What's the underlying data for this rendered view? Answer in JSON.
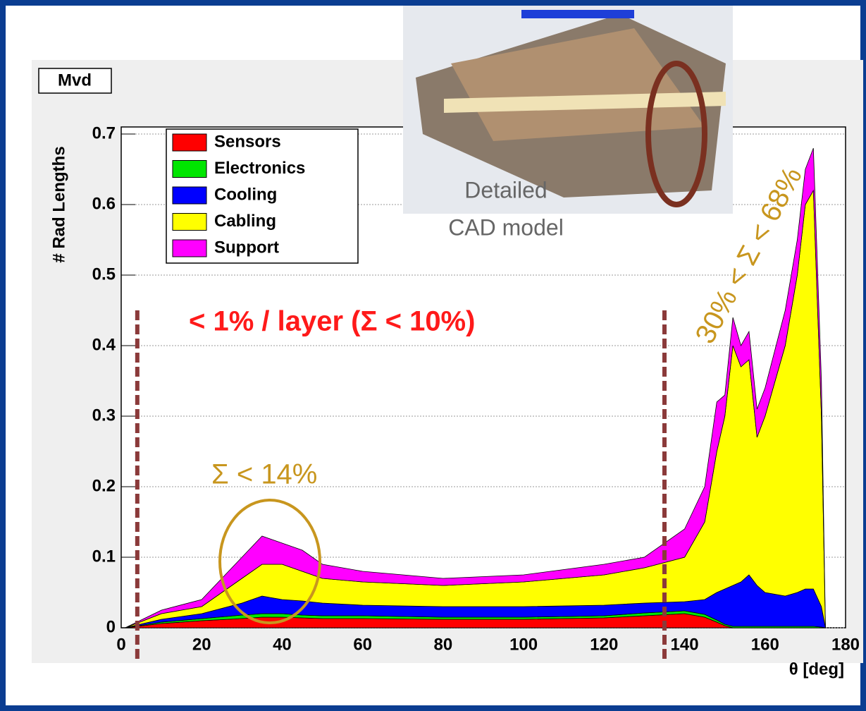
{
  "chart_data": {
    "type": "stacked-area",
    "label": "Mvd",
    "ylabel": "# Rad Lengths",
    "xlabel": "θ [deg]",
    "x": [
      1,
      10,
      20,
      30,
      35,
      40,
      45,
      50,
      60,
      80,
      100,
      120,
      130,
      140,
      145,
      148,
      150,
      152,
      154,
      156,
      158,
      160,
      165,
      168,
      170,
      172,
      174,
      175
    ],
    "series": [
      {
        "name": "Sensors",
        "color": "#ff0000",
        "values": [
          0,
          0.006,
          0.01,
          0.013,
          0.015,
          0.015,
          0.014,
          0.013,
          0.013,
          0.012,
          0.012,
          0.014,
          0.017,
          0.02,
          0.015,
          0.008,
          0.003,
          0,
          0,
          0,
          0,
          0,
          0,
          0,
          0,
          0,
          0,
          0
        ]
      },
      {
        "name": "Electronics",
        "color": "#00e600",
        "values": [
          0,
          0.002,
          0.003,
          0.005,
          0.005,
          0.005,
          0.004,
          0.004,
          0.004,
          0.003,
          0.003,
          0.003,
          0.004,
          0.004,
          0.004,
          0.003,
          0.002,
          0.002,
          0.002,
          0.002,
          0.002,
          0.002,
          0.002,
          0.002,
          0.002,
          0.002,
          0.001,
          0
        ]
      },
      {
        "name": "Cooling",
        "color": "#0000ff",
        "values": [
          0,
          0.004,
          0.007,
          0.017,
          0.025,
          0.02,
          0.02,
          0.018,
          0.015,
          0.015,
          0.015,
          0.015,
          0.014,
          0.013,
          0.021,
          0.039,
          0.05,
          0.058,
          0.063,
          0.073,
          0.058,
          0.048,
          0.043,
          0.048,
          0.053,
          0.053,
          0.029,
          0
        ]
      },
      {
        "name": "Cabling",
        "color": "#ffff00",
        "values": [
          0,
          0.008,
          0.01,
          0.035,
          0.045,
          0.05,
          0.042,
          0.035,
          0.033,
          0.03,
          0.035,
          0.043,
          0.05,
          0.063,
          0.11,
          0.2,
          0.245,
          0.34,
          0.305,
          0.305,
          0.21,
          0.25,
          0.355,
          0.45,
          0.545,
          0.565,
          0.27,
          0
        ]
      },
      {
        "name": "Support",
        "color": "#ff00ff",
        "values": [
          0,
          0.005,
          0.01,
          0.03,
          0.04,
          0.03,
          0.03,
          0.02,
          0.015,
          0.01,
          0.01,
          0.015,
          0.015,
          0.04,
          0.05,
          0.07,
          0.03,
          0.04,
          0.03,
          0.04,
          0.04,
          0.04,
          0.05,
          0.05,
          0.05,
          0.06,
          0.05,
          0
        ]
      }
    ],
    "xlim": [
      0,
      180
    ],
    "xticks": [
      0,
      20,
      40,
      60,
      80,
      100,
      120,
      140,
      160,
      180
    ],
    "ylim": [
      0,
      0.71
    ],
    "yticks": [
      0,
      0.1,
      0.2,
      0.3,
      0.4,
      0.5,
      0.6,
      0.7
    ],
    "grid": true,
    "legend": "top-left",
    "reference_lines": [
      4,
      135
    ],
    "annotations": [
      "< 1% / layer (Σ < 10%)",
      "Σ < 14%",
      "30% < Σ < 68%",
      "Detailed",
      "CAD model"
    ]
  }
}
